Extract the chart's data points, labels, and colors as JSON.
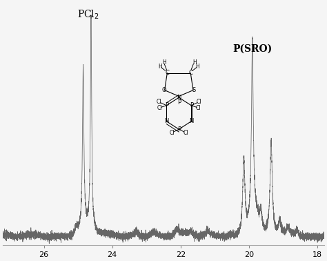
{
  "x_min": 27.2,
  "x_max": 17.8,
  "y_min": -0.04,
  "y_max": 1.05,
  "background_color": "#f5f5f5",
  "line_color": "#666666",
  "xticks": [
    26,
    24,
    22,
    20,
    18
  ],
  "pcl2_label": "PCl$_2$",
  "psro_label": "P(SRO)",
  "seed": 17
}
